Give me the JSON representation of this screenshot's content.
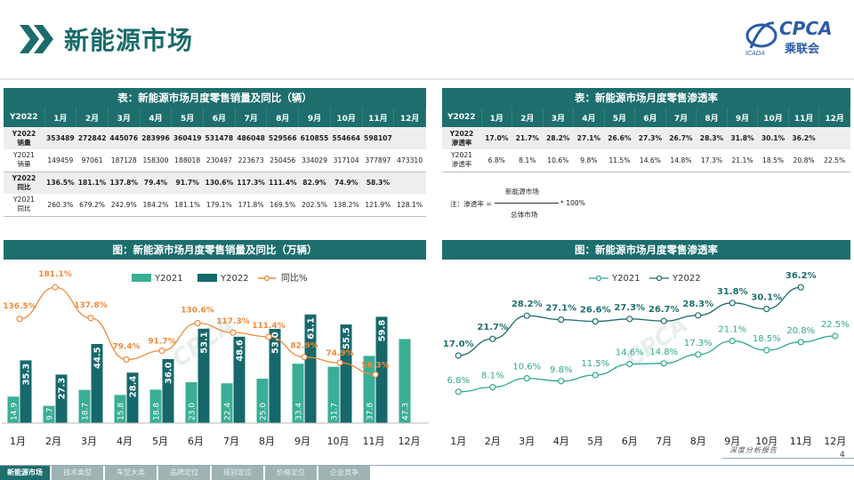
{
  "header": {
    "title": "新能源市场",
    "logo_text": "CPCA",
    "logo_cn": "乘联会",
    "logo_sub": "ICADA"
  },
  "colors": {
    "y2021": "#3aae96",
    "y2022": "#16686b",
    "yoy": "#f08a3a",
    "header_bg": "#1e6e6e"
  },
  "table1": {
    "title": "表：新能源市场月度零售销量及同比（辆）",
    "columns": [
      "Y2022",
      "1月",
      "2月",
      "3月",
      "4月",
      "5月",
      "6月",
      "7月",
      "8月",
      "9月",
      "10月",
      "11月",
      "12月"
    ],
    "rows": [
      {
        "label": [
          "Y2022",
          "销量"
        ],
        "values": [
          "353489",
          "272842",
          "445076",
          "283996",
          "360419",
          "531478",
          "486048",
          "529566",
          "610855",
          "554664",
          "598107",
          ""
        ],
        "style": "r1"
      },
      {
        "label": [
          "Y2021",
          "销量"
        ],
        "values": [
          "149459",
          "97061",
          "187128",
          "158300",
          "188018",
          "230497",
          "223673",
          "250456",
          "334029",
          "317104",
          "377897",
          "473310"
        ],
        "style": "r2"
      },
      {
        "label": [
          "Y2022",
          "同比"
        ],
        "values": [
          "136.5%",
          "181.1%",
          "137.8%",
          "79.4%",
          "91.7%",
          "130.6%",
          "117.3%",
          "111.4%",
          "82.9%",
          "74.9%",
          "58.3%",
          ""
        ],
        "style": "r1"
      },
      {
        "label": [
          "Y2021",
          "同比"
        ],
        "values": [
          "260.3%",
          "679.2%",
          "242.9%",
          "184.2%",
          "181.1%",
          "179.1%",
          "171.8%",
          "169.5%",
          "202.5%",
          "138.2%",
          "121.9%",
          "128.1%"
        ],
        "style": "r2"
      }
    ]
  },
  "table2": {
    "title": "表：新能源市场月度零售渗透率",
    "columns": [
      "Y2022",
      "1月",
      "2月",
      "3月",
      "4月",
      "5月",
      "6月",
      "7月",
      "8月",
      "9月",
      "10月",
      "11月",
      "12月"
    ],
    "rows": [
      {
        "label": [
          "Y2022",
          "渗透率"
        ],
        "values": [
          "17.0%",
          "21.7%",
          "28.2%",
          "27.1%",
          "26.6%",
          "27.3%",
          "26.7%",
          "28.3%",
          "31.8%",
          "30.1%",
          "36.2%",
          ""
        ],
        "style": "r1"
      },
      {
        "label": [
          "Y2021",
          "渗透率"
        ],
        "values": [
          "6.8%",
          "8.1%",
          "10.6%",
          "9.8%",
          "11.5%",
          "14.6%",
          "14.8%",
          "17.3%",
          "21.1%",
          "18.5%",
          "20.8%",
          "22.5%"
        ],
        "style": "r2"
      }
    ]
  },
  "formula": {
    "note": "注：渗透率 =",
    "numerator": "新能源市场",
    "denominator": "总体市场",
    "multiplier": "* 100%"
  },
  "chart_data": [
    {
      "type": "bar",
      "title": "图：新能源市场月度零售销量及同比（万辆）",
      "categories": [
        "1月",
        "2月",
        "3月",
        "4月",
        "5月",
        "6月",
        "7月",
        "8月",
        "9月",
        "10月",
        "11月",
        "12月"
      ],
      "series": [
        {
          "name": "Y2021",
          "values": [
            14.9,
            9.7,
            18.7,
            15.8,
            18.8,
            23.0,
            22.4,
            25.0,
            33.4,
            31.7,
            37.8,
            47.3
          ]
        },
        {
          "name": "Y2022",
          "values": [
            35.3,
            27.3,
            44.5,
            28.4,
            36.0,
            53.1,
            48.6,
            53.0,
            61.1,
            55.5,
            59.8,
            null
          ]
        },
        {
          "name": "同比%",
          "kind": "line",
          "values": [
            136.5,
            181.1,
            137.8,
            79.4,
            91.7,
            130.6,
            117.3,
            111.4,
            82.9,
            74.9,
            58.3,
            null
          ]
        }
      ],
      "value_labels_2021": [
        "14.9",
        "9.7",
        "18.7",
        "15.8",
        "18.8",
        "23.0",
        "22.4",
        "25.0",
        "33.4",
        "31.7",
        "37.8",
        "47.3"
      ],
      "value_labels_2022": [
        "35.3",
        "27.3",
        "44.5",
        "28.4",
        "36.0",
        "53.1",
        "48.6",
        "53.0",
        "61.1",
        "55.5",
        "59.8",
        ""
      ],
      "yoy_labels": [
        "136.5%",
        "181.1%",
        "137.8%",
        "79.4%",
        "91.7%",
        "130.6%",
        "117.3%",
        "111.4%",
        "82.9%",
        "74.9%",
        "58.3%",
        ""
      ],
      "ylim": [
        0,
        70
      ],
      "ylim_secondary": [
        0,
        200
      ]
    },
    {
      "type": "line",
      "title": "图：新能源市场月度零售渗透率",
      "categories": [
        "1月",
        "2月",
        "3月",
        "4月",
        "5月",
        "6月",
        "7月",
        "8月",
        "9月",
        "10月",
        "11月",
        "12月"
      ],
      "series": [
        {
          "name": "Y2021",
          "values": [
            6.8,
            8.1,
            10.6,
            9.8,
            11.5,
            14.6,
            14.8,
            17.3,
            21.1,
            18.5,
            20.8,
            22.5
          ]
        },
        {
          "name": "Y2022",
          "values": [
            17.0,
            21.7,
            28.2,
            27.1,
            26.6,
            27.3,
            26.7,
            28.3,
            31.8,
            30.1,
            36.2,
            null
          ]
        }
      ],
      "labels_2021": [
        "6.8%",
        "8.1%",
        "10.6%",
        "9.8%",
        "11.5%",
        "14.6%",
        "14.8%",
        "17.3%",
        "21.1%",
        "18.5%",
        "20.8%",
        "22.5%"
      ],
      "labels_2022": [
        "17.0%",
        "21.7%",
        "28.2%",
        "27.1%",
        "26.6%",
        "27.3%",
        "26.7%",
        "28.3%",
        "31.8%",
        "30.1%",
        "36.2%",
        ""
      ],
      "ylim": [
        0,
        40
      ]
    }
  ],
  "footer": {
    "tabs": [
      "新能源市场",
      "技术类型",
      "车型大类",
      "品牌定位",
      "级别定位",
      "价格定位",
      "企业竞争"
    ],
    "slogan": "深度分析报告",
    "page": "4"
  }
}
